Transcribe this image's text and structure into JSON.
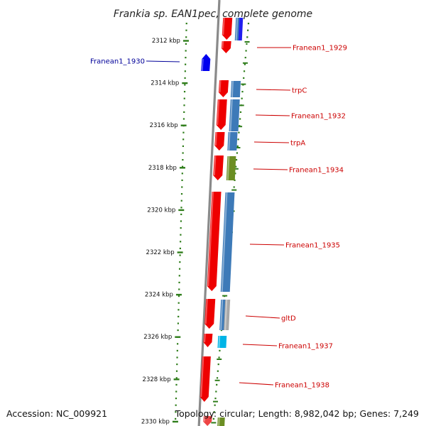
{
  "title": "Frankia sp. EAN1pec, complete genome",
  "footer": {
    "accession": "Accession: NC_009921",
    "topology": "Topology: circular; Length: 8,982,042 bp; Genes: 7,249"
  },
  "colors": {
    "forward_cds": "#ee0000",
    "reverse_cds": "#0000ee",
    "blue_track": "#3d7ab8",
    "olive_track": "#6b8e23",
    "grey_track": "#a8a8a8",
    "cyan_track": "#00b4e6",
    "tick": "#2e7d1a",
    "forward_label": "#cc0000",
    "reverse_label": "#000099",
    "backbone": "#8a8a8a"
  },
  "scale_labels": [
    "2312 kbp",
    "2314 kbp",
    "2316 kbp",
    "2318 kbp",
    "2320 kbp",
    "2322 kbp",
    "2324 kbp",
    "2326 kbp",
    "2328 kbp",
    "2330 kbp"
  ],
  "genes": [
    {
      "label": "Franean1_1929",
      "strand": "forward"
    },
    {
      "label": "Franean1_1930",
      "strand": "reverse"
    },
    {
      "label": "trpC",
      "strand": "forward"
    },
    {
      "label": "Franean1_1932",
      "strand": "forward"
    },
    {
      "label": "trpA",
      "strand": "forward"
    },
    {
      "label": "Franean1_1934",
      "strand": "forward"
    },
    {
      "label": "Franean1_1935",
      "strand": "forward"
    },
    {
      "label": "gltD",
      "strand": "forward"
    },
    {
      "label": "Franean1_1937",
      "strand": "forward"
    },
    {
      "label": "Franean1_1938",
      "strand": "forward"
    }
  ]
}
